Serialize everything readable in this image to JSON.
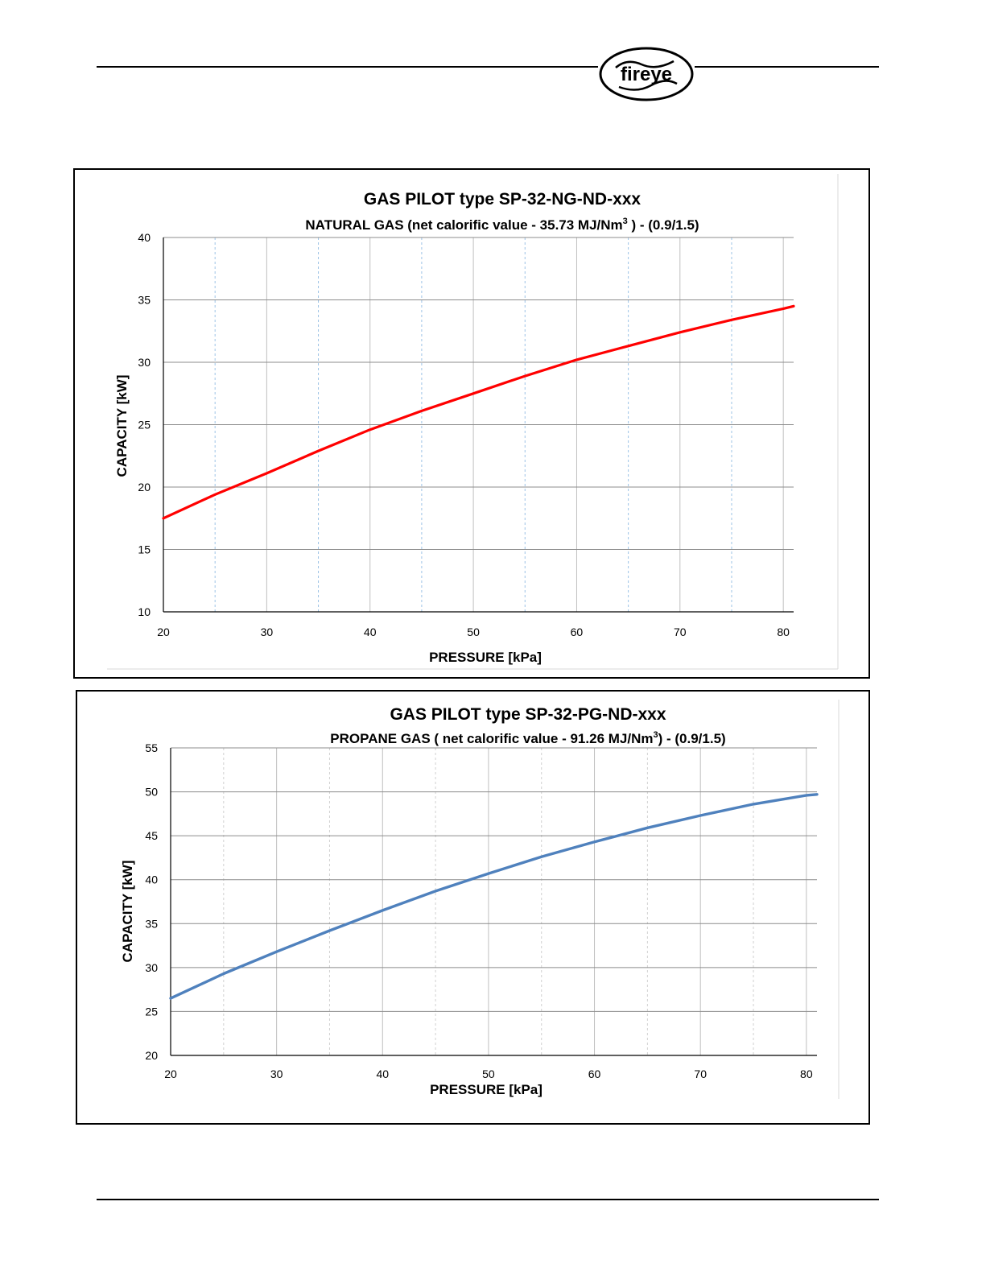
{
  "header": {
    "logo_text": "fireye"
  },
  "chart_data": [
    {
      "type": "line",
      "title": "GAS PILOT type SP-32-NG-ND-xxx",
      "subtitle": "NATURAL GAS  (net calorific value - 35.73 MJ/Nm",
      "subtitle_sup": "3",
      "subtitle_tail": " ) - (0.9/1.5)",
      "xlabel": "PRESSURE  [kPa]",
      "ylabel": "CAPACITY  [kW]",
      "xlim": [
        20,
        81
      ],
      "ylim": [
        10,
        40
      ],
      "xticks": [
        "20",
        "30",
        "40",
        "50",
        "60",
        "70",
        "80"
      ],
      "yticks": [
        "10",
        "15",
        "20",
        "25",
        "30",
        "35",
        "40"
      ],
      "grid": true,
      "color": "#ff0000",
      "series": [
        {
          "x": [
            20,
            25,
            30,
            35,
            40,
            45,
            50,
            55,
            60,
            65,
            70,
            75,
            80,
            81
          ],
          "values": [
            17.5,
            19.4,
            21.1,
            22.9,
            24.6,
            26.1,
            27.5,
            28.9,
            30.2,
            31.3,
            32.4,
            33.4,
            34.3,
            34.5
          ]
        }
      ]
    },
    {
      "type": "line",
      "title": "GAS PILOT type SP-32-PG-ND-xxx",
      "subtitle": "PROPANE GAS ( net calorific value - 91.26 MJ/Nm",
      "subtitle_sup": "3",
      "subtitle_tail": ") - (0.9/1.5)",
      "xlabel": "PRESSURE  [kPa]",
      "ylabel": "CAPACITY   [kW]",
      "xlim": [
        20,
        81
      ],
      "ylim": [
        20,
        55
      ],
      "xticks": [
        "20",
        "30",
        "40",
        "50",
        "60",
        "70",
        "80"
      ],
      "yticks": [
        "20",
        "25",
        "30",
        "35",
        "40",
        "45",
        "50",
        "55"
      ],
      "grid": true,
      "color": "#4f81bd",
      "series": [
        {
          "x": [
            20,
            25,
            30,
            35,
            40,
            45,
            50,
            55,
            60,
            65,
            70,
            75,
            80,
            81
          ],
          "values": [
            26.5,
            29.3,
            31.8,
            34.2,
            36.5,
            38.7,
            40.7,
            42.6,
            44.3,
            45.9,
            47.3,
            48.6,
            49.6,
            49.7
          ]
        }
      ]
    }
  ]
}
